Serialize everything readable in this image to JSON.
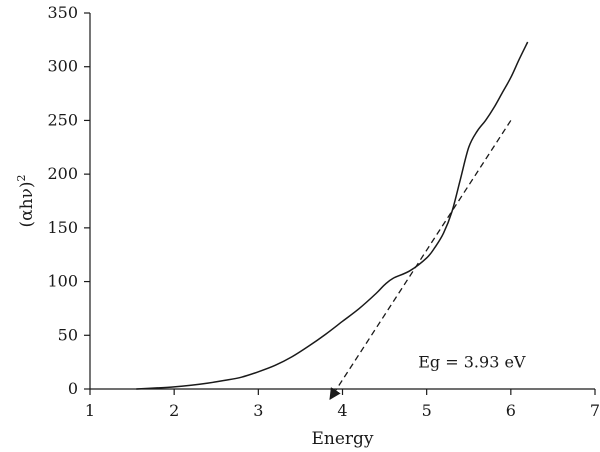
{
  "chart_data": {
    "type": "line",
    "xlabel": "Energy",
    "ylabel": "(αhν)",
    "ylabel_superscript": "2",
    "xlim": [
      1,
      7
    ],
    "ylim": [
      0,
      350
    ],
    "xticks": [
      1,
      2,
      3,
      4,
      5,
      6,
      7
    ],
    "yticks": [
      0,
      50,
      100,
      150,
      200,
      250,
      300,
      350
    ],
    "grid": false,
    "annotations": [
      {
        "text": "Eg = 3.93 eV",
        "x": 4.9,
        "y": 20
      }
    ],
    "series": [
      {
        "style": "solid",
        "x": [
          1.55,
          1.8,
          2.0,
          2.2,
          2.4,
          2.6,
          2.8,
          3.0,
          3.2,
          3.4,
          3.6,
          3.8,
          4.0,
          4.2,
          4.4,
          4.5,
          4.6,
          4.8,
          5.0,
          5.1,
          5.2,
          5.3,
          5.4,
          5.5,
          5.6,
          5.7,
          5.8,
          5.9,
          6.0,
          6.1,
          6.2
        ],
        "y": [
          0,
          1,
          2,
          3.5,
          5.5,
          8,
          11,
          16,
          22,
          30,
          40,
          51,
          63,
          75,
          89,
          97,
          103,
          110,
          122,
          132,
          145,
          165,
          195,
          225,
          240,
          250,
          262,
          276,
          290,
          307,
          323
        ]
      },
      {
        "style": "dashed",
        "x": [
          3.93,
          6.0
        ],
        "y": [
          0,
          250
        ]
      }
    ]
  }
}
